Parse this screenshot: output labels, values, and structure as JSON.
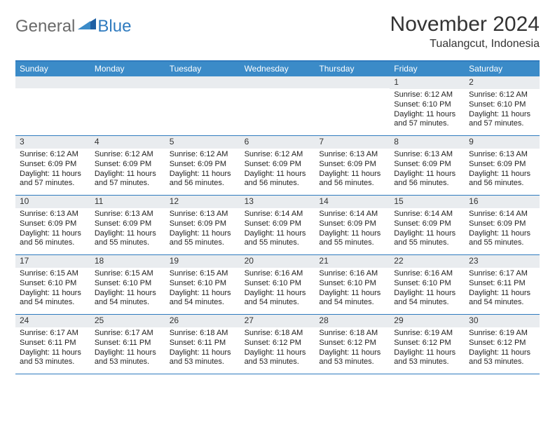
{
  "logo": {
    "general": "General",
    "blue": "Blue"
  },
  "title": "November 2024",
  "location": "Tualangcut, Indonesia",
  "colors": {
    "header_bg": "#3b8bc8",
    "border": "#2f7bbf",
    "daynum_bg": "#e9ecef",
    "text": "#222222",
    "logo_gray": "#6a6a6a",
    "logo_blue": "#2f7bbf"
  },
  "days_of_week": [
    "Sunday",
    "Monday",
    "Tuesday",
    "Wednesday",
    "Thursday",
    "Friday",
    "Saturday"
  ],
  "weeks": [
    [
      null,
      null,
      null,
      null,
      null,
      {
        "n": "1",
        "sr": "Sunrise: 6:12 AM",
        "ss": "Sunset: 6:10 PM",
        "dl": "Daylight: 11 hours and 57 minutes."
      },
      {
        "n": "2",
        "sr": "Sunrise: 6:12 AM",
        "ss": "Sunset: 6:10 PM",
        "dl": "Daylight: 11 hours and 57 minutes."
      }
    ],
    [
      {
        "n": "3",
        "sr": "Sunrise: 6:12 AM",
        "ss": "Sunset: 6:09 PM",
        "dl": "Daylight: 11 hours and 57 minutes."
      },
      {
        "n": "4",
        "sr": "Sunrise: 6:12 AM",
        "ss": "Sunset: 6:09 PM",
        "dl": "Daylight: 11 hours and 57 minutes."
      },
      {
        "n": "5",
        "sr": "Sunrise: 6:12 AM",
        "ss": "Sunset: 6:09 PM",
        "dl": "Daylight: 11 hours and 56 minutes."
      },
      {
        "n": "6",
        "sr": "Sunrise: 6:12 AM",
        "ss": "Sunset: 6:09 PM",
        "dl": "Daylight: 11 hours and 56 minutes."
      },
      {
        "n": "7",
        "sr": "Sunrise: 6:13 AM",
        "ss": "Sunset: 6:09 PM",
        "dl": "Daylight: 11 hours and 56 minutes."
      },
      {
        "n": "8",
        "sr": "Sunrise: 6:13 AM",
        "ss": "Sunset: 6:09 PM",
        "dl": "Daylight: 11 hours and 56 minutes."
      },
      {
        "n": "9",
        "sr": "Sunrise: 6:13 AM",
        "ss": "Sunset: 6:09 PM",
        "dl": "Daylight: 11 hours and 56 minutes."
      }
    ],
    [
      {
        "n": "10",
        "sr": "Sunrise: 6:13 AM",
        "ss": "Sunset: 6:09 PM",
        "dl": "Daylight: 11 hours and 56 minutes."
      },
      {
        "n": "11",
        "sr": "Sunrise: 6:13 AM",
        "ss": "Sunset: 6:09 PM",
        "dl": "Daylight: 11 hours and 55 minutes."
      },
      {
        "n": "12",
        "sr": "Sunrise: 6:13 AM",
        "ss": "Sunset: 6:09 PM",
        "dl": "Daylight: 11 hours and 55 minutes."
      },
      {
        "n": "13",
        "sr": "Sunrise: 6:14 AM",
        "ss": "Sunset: 6:09 PM",
        "dl": "Daylight: 11 hours and 55 minutes."
      },
      {
        "n": "14",
        "sr": "Sunrise: 6:14 AM",
        "ss": "Sunset: 6:09 PM",
        "dl": "Daylight: 11 hours and 55 minutes."
      },
      {
        "n": "15",
        "sr": "Sunrise: 6:14 AM",
        "ss": "Sunset: 6:09 PM",
        "dl": "Daylight: 11 hours and 55 minutes."
      },
      {
        "n": "16",
        "sr": "Sunrise: 6:14 AM",
        "ss": "Sunset: 6:09 PM",
        "dl": "Daylight: 11 hours and 55 minutes."
      }
    ],
    [
      {
        "n": "17",
        "sr": "Sunrise: 6:15 AM",
        "ss": "Sunset: 6:10 PM",
        "dl": "Daylight: 11 hours and 54 minutes."
      },
      {
        "n": "18",
        "sr": "Sunrise: 6:15 AM",
        "ss": "Sunset: 6:10 PM",
        "dl": "Daylight: 11 hours and 54 minutes."
      },
      {
        "n": "19",
        "sr": "Sunrise: 6:15 AM",
        "ss": "Sunset: 6:10 PM",
        "dl": "Daylight: 11 hours and 54 minutes."
      },
      {
        "n": "20",
        "sr": "Sunrise: 6:16 AM",
        "ss": "Sunset: 6:10 PM",
        "dl": "Daylight: 11 hours and 54 minutes."
      },
      {
        "n": "21",
        "sr": "Sunrise: 6:16 AM",
        "ss": "Sunset: 6:10 PM",
        "dl": "Daylight: 11 hours and 54 minutes."
      },
      {
        "n": "22",
        "sr": "Sunrise: 6:16 AM",
        "ss": "Sunset: 6:10 PM",
        "dl": "Daylight: 11 hours and 54 minutes."
      },
      {
        "n": "23",
        "sr": "Sunrise: 6:17 AM",
        "ss": "Sunset: 6:11 PM",
        "dl": "Daylight: 11 hours and 54 minutes."
      }
    ],
    [
      {
        "n": "24",
        "sr": "Sunrise: 6:17 AM",
        "ss": "Sunset: 6:11 PM",
        "dl": "Daylight: 11 hours and 53 minutes."
      },
      {
        "n": "25",
        "sr": "Sunrise: 6:17 AM",
        "ss": "Sunset: 6:11 PM",
        "dl": "Daylight: 11 hours and 53 minutes."
      },
      {
        "n": "26",
        "sr": "Sunrise: 6:18 AM",
        "ss": "Sunset: 6:11 PM",
        "dl": "Daylight: 11 hours and 53 minutes."
      },
      {
        "n": "27",
        "sr": "Sunrise: 6:18 AM",
        "ss": "Sunset: 6:12 PM",
        "dl": "Daylight: 11 hours and 53 minutes."
      },
      {
        "n": "28",
        "sr": "Sunrise: 6:18 AM",
        "ss": "Sunset: 6:12 PM",
        "dl": "Daylight: 11 hours and 53 minutes."
      },
      {
        "n": "29",
        "sr": "Sunrise: 6:19 AM",
        "ss": "Sunset: 6:12 PM",
        "dl": "Daylight: 11 hours and 53 minutes."
      },
      {
        "n": "30",
        "sr": "Sunrise: 6:19 AM",
        "ss": "Sunset: 6:12 PM",
        "dl": "Daylight: 11 hours and 53 minutes."
      }
    ]
  ]
}
